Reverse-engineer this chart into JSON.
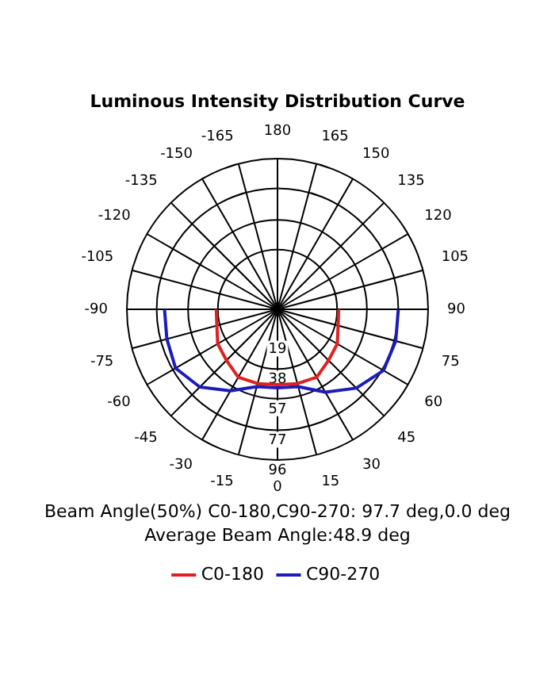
{
  "chart_data": {
    "type": "radar",
    "title": "Luminous Intensity Distribution Curve",
    "categories": [
      "180",
      "165",
      "150",
      "135",
      "120",
      "105",
      "90",
      "75",
      "60",
      "45",
      "30",
      "15",
      "0",
      "-15",
      "-30",
      "-45",
      "-60",
      "-75",
      "-90",
      "-105",
      "-120",
      "-135",
      "-150",
      "-165"
    ],
    "series": [
      {
        "name": "C0-180",
        "color": "#e02020",
        "values": [
          null,
          null,
          null,
          null,
          null,
          null,
          39,
          40,
          44,
          46,
          50,
          49,
          48,
          49,
          50,
          46,
          44,
          40,
          39,
          null,
          null,
          null,
          null,
          null
        ]
      },
      {
        "name": "C90-270",
        "color": "#1c1cb8",
        "values": [
          null,
          null,
          null,
          null,
          null,
          null,
          77,
          78,
          78,
          71,
          61,
          51,
          50,
          51,
          60,
          70,
          75,
          73,
          72,
          null,
          null,
          null,
          null,
          null
        ]
      }
    ],
    "ylim": [
      0,
      96
    ],
    "yticks": [
      19,
      38,
      57,
      77,
      96
    ],
    "grid": true,
    "legend": "bottom",
    "marker": "none",
    "line_style": "solid",
    "annotations": [
      "Beam Angle(50%) C0-180,C90-270: 97.7 deg,0.0 deg",
      "Average Beam Angle:48.9 deg"
    ]
  }
}
